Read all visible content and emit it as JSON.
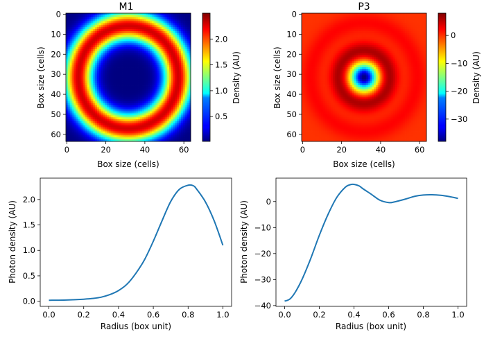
{
  "chart_data": [
    {
      "type": "heatmap",
      "title": "M1",
      "xlabel": "Box size (cells)",
      "ylabel": "Box size (cells)",
      "grid_size": [
        64,
        64
      ],
      "xticks": [
        0,
        20,
        40,
        60
      ],
      "yticks": [
        0,
        10,
        20,
        30,
        40,
        50,
        60
      ],
      "y_direction": "down",
      "colormap": "jet",
      "colorbar": {
        "label": "Density (AU)",
        "range": [
          0.02,
          2.5
        ],
        "ticks": [
          0.5,
          1.0,
          1.5,
          2.0
        ],
        "tick_labels": [
          "0.5",
          "1.0",
          "1.5",
          "2.0"
        ]
      },
      "profile": "radial density; peaks ~2.3 at radius 0.8 of box half-width, near 0 at center",
      "grid": false
    },
    {
      "type": "heatmap",
      "title": "P3",
      "xlabel": "Box size (cells)",
      "ylabel": "Box size (cells)",
      "grid_size": [
        64,
        64
      ],
      "xticks": [
        0,
        20,
        40,
        60
      ],
      "yticks": [
        0,
        10,
        20,
        30,
        40,
        50,
        60
      ],
      "y_direction": "down",
      "colormap": "jet",
      "colorbar": {
        "label": "Density (AU)",
        "range": [
          -38,
          8
        ],
        "ticks": [
          -30,
          -20,
          -10,
          0
        ],
        "tick_labels": [
          "−30",
          "−20",
          "−10",
          "0"
        ]
      },
      "profile": "radial density; minimum ~-38 at center, peak ~7 near radius 0.4",
      "grid": false
    },
    {
      "type": "line",
      "xlabel": "Radius (box unit)",
      "ylabel": "Photon density (AU)",
      "xlim": [
        -0.05,
        1.05
      ],
      "ylim": [
        -0.1,
        2.42
      ],
      "xticks": [
        0.0,
        0.2,
        0.4,
        0.6,
        0.8,
        1.0
      ],
      "yticks": [
        0.0,
        0.5,
        1.0,
        1.5,
        2.0
      ],
      "color": "#1f77b4",
      "grid": false,
      "series": [
        {
          "x": [
            0.0,
            0.1,
            0.2,
            0.25,
            0.3,
            0.35,
            0.4,
            0.45,
            0.5,
            0.55,
            0.6,
            0.65,
            0.7,
            0.75,
            0.8,
            0.83,
            0.85,
            0.9,
            0.95,
            1.0
          ],
          "values": [
            0.02,
            0.025,
            0.04,
            0.055,
            0.08,
            0.13,
            0.21,
            0.34,
            0.55,
            0.82,
            1.18,
            1.58,
            1.96,
            2.2,
            2.28,
            2.27,
            2.2,
            1.95,
            1.58,
            1.1
          ]
        }
      ]
    },
    {
      "type": "line",
      "xlabel": "Radius (box unit)",
      "ylabel": "Photon density (AU)",
      "xlim": [
        -0.05,
        1.05
      ],
      "ylim": [
        -40.3,
        9.0
      ],
      "xticks": [
        0.0,
        0.2,
        0.4,
        0.6,
        0.8,
        1.0
      ],
      "yticks": [
        -40,
        -30,
        -20,
        -10,
        0
      ],
      "color": "#1f77b4",
      "grid": false,
      "series": [
        {
          "x": [
            0.0,
            0.03,
            0.06,
            0.1,
            0.15,
            0.2,
            0.25,
            0.3,
            0.35,
            0.38,
            0.4,
            0.43,
            0.45,
            0.5,
            0.55,
            0.6,
            0.63,
            0.7,
            0.75,
            0.8,
            0.85,
            0.9,
            0.95,
            1.0
          ],
          "values": [
            -38.3,
            -37.5,
            -35,
            -30,
            -22,
            -13,
            -5,
            1.5,
            5.5,
            6.5,
            6.6,
            6.0,
            5.0,
            2.8,
            0.5,
            -0.4,
            -0.2,
            1.0,
            2.0,
            2.5,
            2.6,
            2.4,
            1.9,
            1.2
          ]
        }
      ]
    }
  ]
}
